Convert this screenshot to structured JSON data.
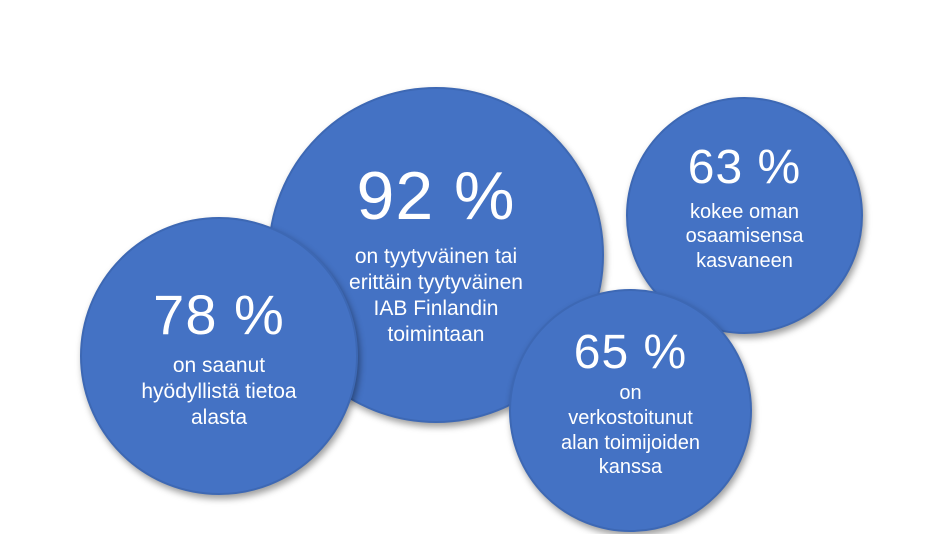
{
  "bubbles": {
    "b92": {
      "stat": "92 %",
      "text": "on tyytyväinen tai\nerittäin tyytyväinen\nIAB Finlandin\ntoimintaan"
    },
    "b78": {
      "stat": "78 %",
      "text": "on saanut\nhyödyllistä tietoa\nalasta"
    },
    "b63": {
      "stat": "63 %",
      "text": "kokee oman\nosaamisensa\nkasvaneen"
    },
    "b65": {
      "stat": "65 %",
      "text": "on\nverkostoitunut\nalan toimijoiden\nkanssa"
    }
  },
  "colors": {
    "bubble_fill": "#4472c4",
    "text": "#ffffff"
  }
}
